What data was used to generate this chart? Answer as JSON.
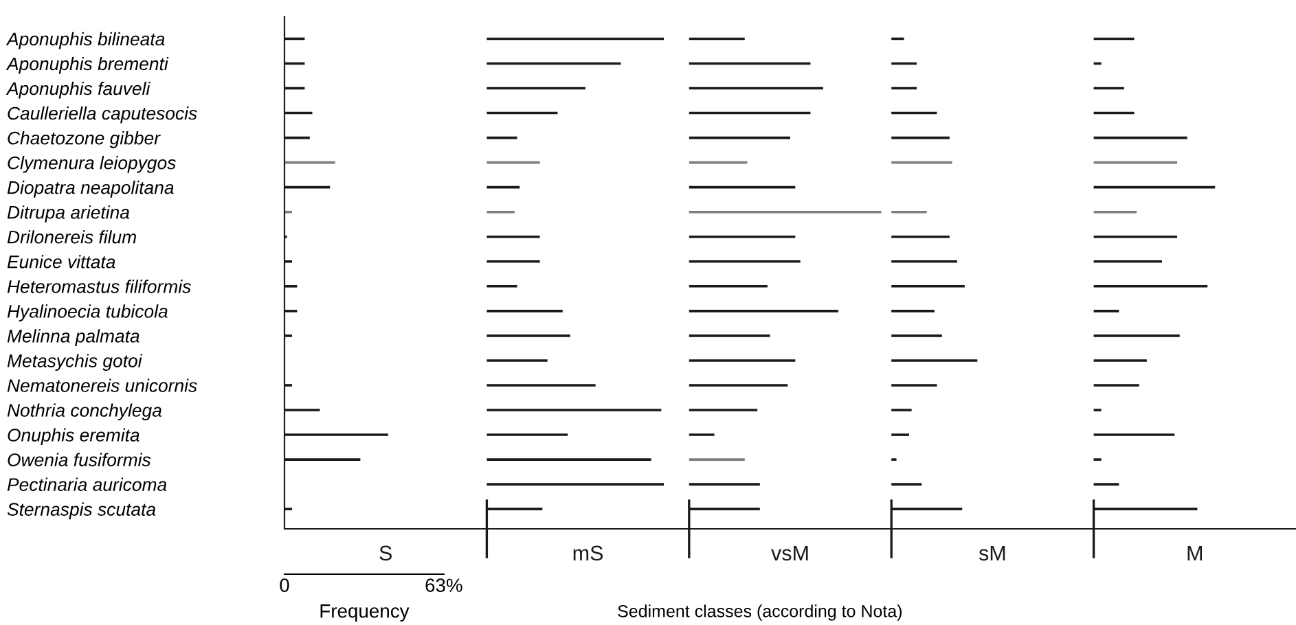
{
  "chart_data": {
    "type": "bar",
    "orientation": "horizontal",
    "xlim": [
      0,
      400
    ],
    "xticks": [
      0,
      {
        "value": 63,
        "label": "63%"
      }
    ],
    "annotations": [
      "Frequency",
      "Sediment classes (according to Nota)"
    ],
    "categories": [
      "Aponuphis bilineata",
      "Aponuphis brementi",
      "Aponuphis fauveli",
      "Caulleriella caputesocis",
      "Chaetozone gibber",
      "Clymenura leiopygos",
      "Diopatra neapolitana",
      "Ditrupa arietina",
      "Drilonereis filum",
      "Eunice vittata",
      "Heteromastus filiformis",
      "Hyalinoecia tubicola",
      "Melinna palmata",
      "Metasychis gotoi",
      "Nematonereis unicornis",
      "Nothria conchylega",
      "Onuphis eremita",
      "Owenia fusiformis",
      "Pectinaria auricoma",
      "Sternaspis scutata"
    ],
    "series": [
      {
        "name": "S",
        "color": "#1a1a1a",
        "base": [
          0,
          0,
          0,
          0,
          0,
          0,
          0,
          0,
          0,
          0,
          0,
          0,
          0,
          null,
          0,
          0,
          0,
          0,
          null,
          0
        ],
        "values": [
          8,
          8,
          8,
          11,
          10,
          20,
          18,
          3,
          1,
          3,
          5,
          5,
          3,
          null,
          3,
          14,
          41,
          30,
          null,
          3
        ],
        "colors": [
          "#1a1a1a",
          "#1a1a1a",
          "#1a1a1a",
          "#1a1a1a",
          "#1a1a1a",
          "#7f7f7f",
          "#1a1a1a",
          "#7f7f7f",
          "#1a1a1a",
          "#1a1a1a",
          "#1a1a1a",
          "#1a1a1a",
          "#1a1a1a",
          "#1a1a1a",
          "#1a1a1a",
          "#1a1a1a",
          "#1a1a1a",
          "#1a1a1a",
          "#1a1a1a",
          "#1a1a1a"
        ]
      },
      {
        "name": "mS",
        "color": "#1a1a1a",
        "base": [
          80,
          80,
          80,
          80,
          80,
          80,
          80,
          80,
          80,
          80,
          80,
          80,
          80,
          80,
          80,
          80,
          80,
          80,
          80,
          80
        ],
        "values": [
          70,
          53,
          39,
          28,
          12,
          21,
          13,
          11,
          21,
          21,
          12,
          30,
          33,
          24,
          43,
          69,
          32,
          65,
          70,
          22
        ],
        "colors": [
          "#1a1a1a",
          "#1a1a1a",
          "#1a1a1a",
          "#1a1a1a",
          "#1a1a1a",
          "#7f7f7f",
          "#1a1a1a",
          "#7f7f7f",
          "#1a1a1a",
          "#1a1a1a",
          "#1a1a1a",
          "#1a1a1a",
          "#1a1a1a",
          "#1a1a1a",
          "#1a1a1a",
          "#1a1a1a",
          "#1a1a1a",
          "#1a1a1a",
          "#1a1a1a",
          "#1a1a1a"
        ]
      },
      {
        "name": "vsM",
        "color": "#1a1a1a",
        "base": [
          160,
          160,
          160,
          160,
          160,
          160,
          160,
          160,
          160,
          160,
          160,
          160,
          160,
          160,
          160,
          160,
          160,
          160,
          160,
          160
        ],
        "values": [
          22,
          48,
          53,
          48,
          40,
          23,
          42,
          76,
          42,
          44,
          31,
          59,
          32,
          42,
          39,
          27,
          10,
          22,
          28,
          28
        ],
        "colors": [
          "#1a1a1a",
          "#1a1a1a",
          "#1a1a1a",
          "#1a1a1a",
          "#1a1a1a",
          "#7f7f7f",
          "#1a1a1a",
          "#7f7f7f",
          "#1a1a1a",
          "#1a1a1a",
          "#1a1a1a",
          "#1a1a1a",
          "#1a1a1a",
          "#1a1a1a",
          "#1a1a1a",
          "#1a1a1a",
          "#1a1a1a",
          "#7f7f7f",
          "#1a1a1a",
          "#1a1a1a"
        ]
      },
      {
        "name": "sM",
        "color": "#1a1a1a",
        "base": [
          240,
          240,
          240,
          240,
          240,
          240,
          null,
          240,
          240,
          240,
          240,
          240,
          240,
          240,
          240,
          240,
          240,
          240,
          240,
          240
        ],
        "values": [
          5,
          10,
          10,
          18,
          23,
          24,
          null,
          14,
          23,
          26,
          29,
          17,
          20,
          34,
          18,
          8,
          7,
          2,
          12,
          28
        ],
        "colors": [
          "#1a1a1a",
          "#1a1a1a",
          "#1a1a1a",
          "#1a1a1a",
          "#1a1a1a",
          "#7f7f7f",
          "#1a1a1a",
          "#7f7f7f",
          "#1a1a1a",
          "#1a1a1a",
          "#1a1a1a",
          "#1a1a1a",
          "#1a1a1a",
          "#1a1a1a",
          "#1a1a1a",
          "#1a1a1a",
          "#1a1a1a",
          "#1a1a1a",
          "#1a1a1a",
          "#1a1a1a"
        ]
      },
      {
        "name": "M",
        "color": "#1a1a1a",
        "base": [
          320,
          320,
          320,
          320,
          320,
          320,
          320,
          320,
          320,
          320,
          320,
          320,
          320,
          320,
          320,
          320,
          320,
          320,
          320,
          320
        ],
        "values": [
          16,
          3,
          12,
          16,
          37,
          33,
          48,
          17,
          33,
          27,
          45,
          10,
          34,
          21,
          18,
          3,
          32,
          3,
          10,
          41
        ],
        "colors": [
          "#1a1a1a",
          "#1a1a1a",
          "#1a1a1a",
          "#1a1a1a",
          "#1a1a1a",
          "#7f7f7f",
          "#1a1a1a",
          "#7f7f7f",
          "#1a1a1a",
          "#1a1a1a",
          "#1a1a1a",
          "#1a1a1a",
          "#1a1a1a",
          "#1a1a1a",
          "#1a1a1a",
          "#1a1a1a",
          "#1a1a1a",
          "#1a1a1a",
          "#1a1a1a",
          "#1a1a1a"
        ]
      }
    ]
  }
}
